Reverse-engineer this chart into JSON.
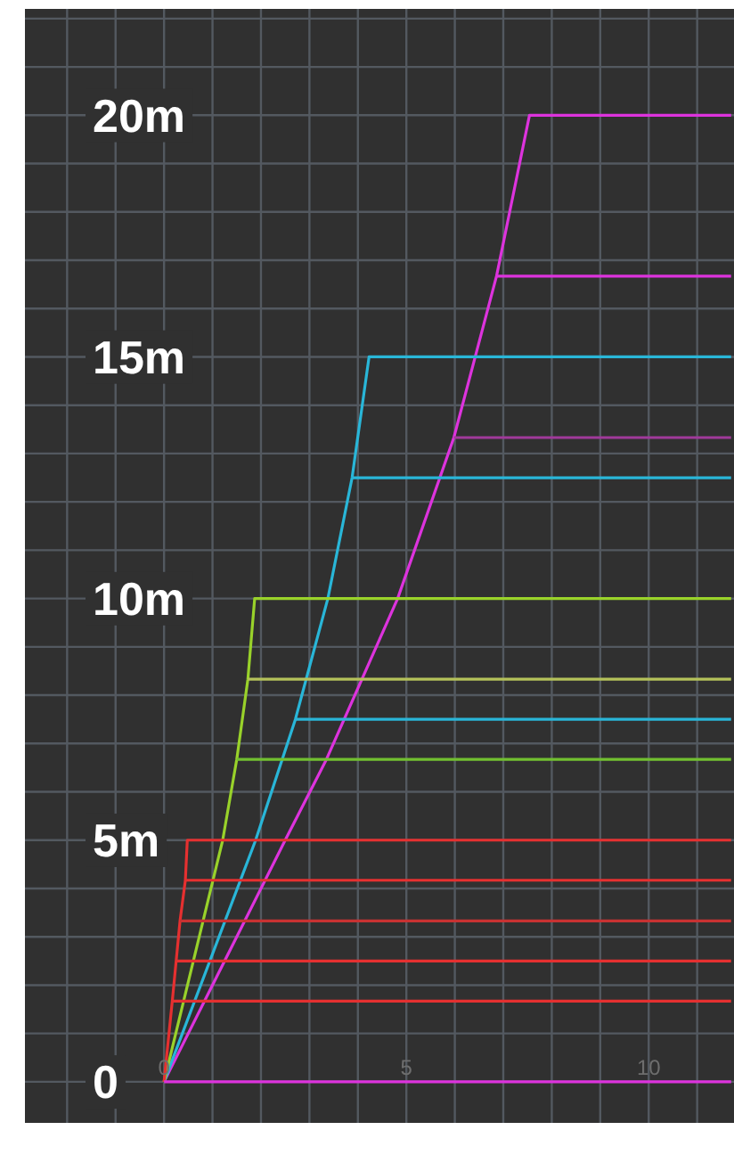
{
  "chart_data": {
    "type": "line",
    "xlim": [
      -2.87,
      11.76
    ],
    "ylim": [
      -0.85,
      22.2
    ],
    "xticks": [
      {
        "value": -2,
        "label": null
      },
      {
        "value": -1,
        "label": null
      },
      0,
      {
        "value": 1,
        "label": null
      },
      {
        "value": 2,
        "label": null
      },
      {
        "value": 3,
        "label": null
      },
      {
        "value": 4,
        "label": null
      },
      5,
      {
        "value": 6,
        "label": null
      },
      {
        "value": 7,
        "label": null
      },
      {
        "value": 8,
        "label": null
      },
      {
        "value": 9,
        "label": null
      },
      10,
      {
        "value": 11,
        "label": null
      }
    ],
    "yticks": [
      0,
      {
        "value": 1,
        "label": null
      },
      {
        "value": 2,
        "label": null
      },
      {
        "value": 3,
        "label": null
      },
      {
        "value": 4,
        "label": null
      },
      {
        "value": 5,
        "label": "5m"
      },
      {
        "value": 6,
        "label": null
      },
      {
        "value": 7,
        "label": null
      },
      {
        "value": 8,
        "label": null
      },
      {
        "value": 9,
        "label": null
      },
      {
        "value": 10,
        "label": "10m"
      },
      {
        "value": 11,
        "label": null
      },
      {
        "value": 12,
        "label": null
      },
      {
        "value": 13,
        "label": null
      },
      {
        "value": 14,
        "label": null
      },
      {
        "value": 15,
        "label": "15m"
      },
      {
        "value": 16,
        "label": null
      },
      {
        "value": 17,
        "label": null
      },
      {
        "value": 18,
        "label": null
      },
      {
        "value": 19,
        "label": null
      },
      {
        "value": 20,
        "label": "20m"
      },
      {
        "value": 21,
        "label": null
      },
      {
        "value": 22,
        "label": null
      }
    ],
    "grid": true,
    "line_style": "solid",
    "marker": "none",
    "series": [
      {
        "color": "#dd33dd",
        "x": [
          0,
          2.5,
          3.35,
          4.82,
          5.98,
          6.86,
          7.54,
          11.7
        ],
        "values": [
          0,
          5,
          6.67,
          10,
          13.33,
          16.67,
          20,
          20
        ]
      },
      {
        "color": "#dd33dd",
        "x": [
          6.86,
          11.7
        ],
        "values": [
          16.67,
          16.67
        ]
      },
      {
        "color": "#a0399a",
        "x": [
          5.98,
          11.7
        ],
        "values": [
          13.33,
          13.33
        ]
      },
      {
        "color": "#29b6d8",
        "x": [
          0,
          1.89,
          2.71,
          3.38,
          3.88,
          4.23,
          11.7
        ],
        "values": [
          0,
          5,
          7.5,
          10,
          12.5,
          15,
          15
        ]
      },
      {
        "color": "#29b6d8",
        "x": [
          3.88,
          11.7
        ],
        "values": [
          12.5,
          12.5
        ]
      },
      {
        "color": "#29b6d8",
        "x": [
          2.71,
          11.7
        ],
        "values": [
          7.5,
          7.5
        ]
      },
      {
        "color": "#99d22a",
        "x": [
          0,
          1.21,
          1.5,
          1.73,
          1.87,
          11.7
        ],
        "values": [
          0,
          5,
          6.67,
          8.33,
          10,
          10
        ]
      },
      {
        "color": "#b5c25a",
        "x": [
          1.73,
          11.7
        ],
        "values": [
          8.33,
          8.33
        ]
      },
      {
        "color": "#72c030",
        "x": [
          1.5,
          11.7
        ],
        "values": [
          6.67,
          6.67
        ]
      },
      {
        "color": "#e53030",
        "x": [
          0,
          0.17,
          0.25,
          0.33,
          0.44,
          0.48,
          11.7
        ],
        "values": [
          0,
          1.67,
          2.5,
          3.33,
          4.17,
          5,
          5
        ]
      },
      {
        "color": "#e53030",
        "x": [
          0.44,
          11.7
        ],
        "values": [
          4.17,
          4.17
        ]
      },
      {
        "color": "#c83232",
        "x": [
          0.33,
          11.7
        ],
        "values": [
          3.33,
          3.33
        ]
      },
      {
        "color": "#e53030",
        "x": [
          0.25,
          11.7
        ],
        "values": [
          2.5,
          2.5
        ]
      },
      {
        "color": "#e53030",
        "x": [
          0.17,
          11.7
        ],
        "values": [
          1.67,
          1.67
        ]
      },
      {
        "color": "#dd33dd",
        "x": [
          0,
          11.7
        ],
        "values": [
          0,
          0
        ]
      }
    ]
  }
}
